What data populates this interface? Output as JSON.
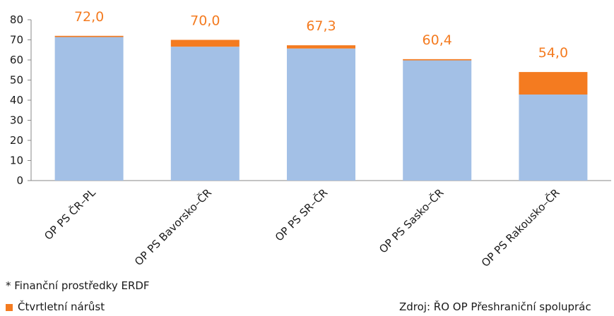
{
  "chart_data": {
    "type": "bar",
    "stacked": true,
    "categories": [
      "OP PS ČR–PL",
      "OP PS Bavorsko–ČR",
      "OP PS SR–ČR",
      "OP PS Sasko–ČR",
      "OP PS Rakousko–ČR"
    ],
    "series": [
      {
        "values": [
          71.4,
          66.6,
          65.7,
          59.8,
          42.8
        ],
        "color": "#a3c0e6"
      },
      {
        "name": "Čtvrtletní nárůst",
        "values": [
          0.6,
          3.4,
          1.6,
          0.6,
          11.2
        ],
        "color": "#f47b20"
      }
    ],
    "totals": [
      "72,0",
      "70,0",
      "67,3",
      "60,4",
      "54,0"
    ],
    "ylim": [
      0,
      80
    ],
    "yticks": [
      0,
      10,
      20,
      30,
      40,
      50,
      60,
      70,
      80
    ],
    "grid": false,
    "legend_position": "bottom-left",
    "label_color": "#f47b20"
  },
  "footnote": "* Finanční prostředky ERDF",
  "legend_label": "Čtvrtletní nárůst",
  "source": "Zdroj: ŘO OP Přeshraniční spoluprác"
}
